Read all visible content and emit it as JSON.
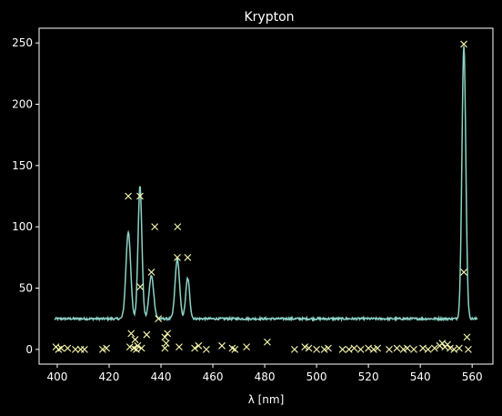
{
  "chart_data": {
    "type": "line",
    "title": "Krypton",
    "xlabel": "λ [nm]",
    "ylabel": "",
    "xlim": [
      393,
      568
    ],
    "ylim": [
      -12,
      262
    ],
    "xticks": [
      400,
      420,
      440,
      460,
      480,
      500,
      520,
      540,
      560
    ],
    "yticks": [
      0,
      50,
      100,
      150,
      200,
      250
    ],
    "grid": false,
    "legend": "none",
    "colors": {
      "background": "#000000",
      "axes": "#ffffff",
      "spectrum": "#8dd3c7",
      "lines": "#ffffb3"
    },
    "series": [
      {
        "kind": "line",
        "baseline": 25,
        "noise": 0.9,
        "x_range": [
          399,
          562
        ],
        "peaks": [
          {
            "center": 427.4,
            "height": 71,
            "width": 0.9
          },
          {
            "center": 431.9,
            "height": 108,
            "width": 0.75
          },
          {
            "center": 436.3,
            "height": 35,
            "width": 0.9
          },
          {
            "center": 446.3,
            "height": 49,
            "width": 0.85
          },
          {
            "center": 450.3,
            "height": 33,
            "width": 0.75
          },
          {
            "center": 556.8,
            "height": 222,
            "width": 0.75
          }
        ]
      },
      {
        "kind": "markers",
        "marker": "x",
        "points": [
          [
            427.4,
            125
          ],
          [
            431.9,
            125
          ],
          [
            432.0,
            51
          ],
          [
            436.3,
            63
          ],
          [
            437.6,
            100
          ],
          [
            446.3,
            75
          ],
          [
            446.4,
            100
          ],
          [
            450.3,
            75
          ],
          [
            556.8,
            249
          ],
          [
            556.8,
            63
          ],
          [
            428.5,
            13
          ],
          [
            430.0,
            8
          ],
          [
            431.0,
            3
          ],
          [
            434.5,
            12
          ],
          [
            439.0,
            25
          ],
          [
            441.5,
            10
          ],
          [
            442.5,
            13
          ],
          [
            442.0,
            5
          ],
          [
            441.5,
            1
          ],
          [
            447.0,
            2
          ],
          [
            481.0,
            6
          ],
          [
            558.0,
            10
          ],
          [
            399.5,
            2
          ],
          [
            400.5,
            0
          ],
          [
            401.5,
            1
          ],
          [
            404.0,
            1
          ],
          [
            407.0,
            0
          ],
          [
            409.0,
            0
          ],
          [
            410.5,
            0
          ],
          [
            417.5,
            0
          ],
          [
            419.0,
            1
          ],
          [
            428.0,
            2
          ],
          [
            429.5,
            1
          ],
          [
            430.5,
            0
          ],
          [
            432.5,
            1
          ],
          [
            453.0,
            1
          ],
          [
            454.5,
            3
          ],
          [
            457.5,
            0
          ],
          [
            463.5,
            3
          ],
          [
            467.5,
            1
          ],
          [
            468.5,
            0
          ],
          [
            473.0,
            2
          ],
          [
            491.5,
            0
          ],
          [
            495.5,
            2
          ],
          [
            497.0,
            1
          ],
          [
            500.0,
            0
          ],
          [
            503.0,
            0
          ],
          [
            504.5,
            1
          ],
          [
            510.0,
            0
          ],
          [
            512.5,
            0
          ],
          [
            514.5,
            1
          ],
          [
            517.0,
            0
          ],
          [
            520.0,
            1
          ],
          [
            522.0,
            0
          ],
          [
            523.5,
            1
          ],
          [
            528.0,
            0
          ],
          [
            531.0,
            1
          ],
          [
            533.5,
            0
          ],
          [
            535.0,
            1
          ],
          [
            537.5,
            0
          ],
          [
            541.0,
            1
          ],
          [
            543.0,
            0
          ],
          [
            545.5,
            1
          ],
          [
            547.5,
            3
          ],
          [
            548.5,
            5
          ],
          [
            549.5,
            2
          ],
          [
            550.5,
            4
          ],
          [
            551.5,
            1
          ],
          [
            553.0,
            0
          ],
          [
            555.0,
            1
          ],
          [
            558.5,
            0
          ]
        ]
      }
    ]
  }
}
